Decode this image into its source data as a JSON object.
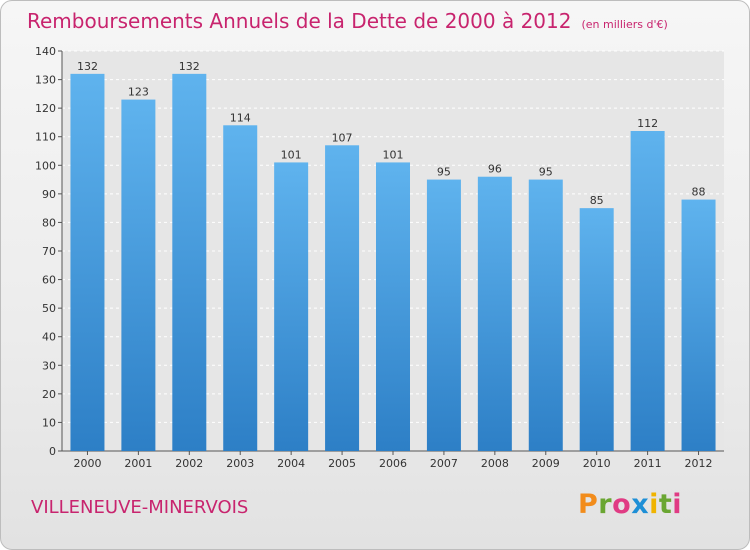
{
  "title": "Remboursements Annuels de la Dette de 2000 à 2012",
  "subtitle": "(en milliers d'€)",
  "commune": "VILLENEUVE-MINERVOIS",
  "logo": {
    "letters": [
      "P",
      "r",
      "o",
      "x",
      "i",
      "t",
      "i"
    ],
    "colors": [
      "#f28c1b",
      "#6aa632",
      "#e03c84",
      "#1e8fd6",
      "#f0b400",
      "#6aa632",
      "#e03c84"
    ]
  },
  "colors": {
    "bar": "#4a9fe0",
    "title": "#c8246e"
  },
  "chart_data": {
    "type": "bar",
    "categories": [
      "2000",
      "2001",
      "2002",
      "2003",
      "2004",
      "2005",
      "2006",
      "2007",
      "2008",
      "2009",
      "2010",
      "2011",
      "2012"
    ],
    "values": [
      132,
      123,
      132,
      114,
      101,
      107,
      101,
      95,
      96,
      95,
      85,
      112,
      88
    ],
    "ylim": [
      0,
      140
    ],
    "yticks": [
      0,
      10,
      20,
      30,
      40,
      50,
      60,
      70,
      80,
      90,
      100,
      110,
      120,
      130,
      140
    ],
    "grid": true,
    "legend": "none"
  }
}
